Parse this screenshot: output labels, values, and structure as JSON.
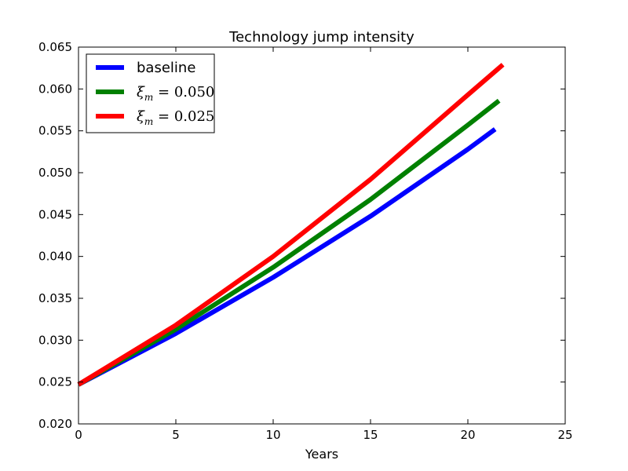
{
  "chart_data": {
    "type": "line",
    "title": "Technology jump intensity",
    "xlabel": "Years",
    "ylabel": "",
    "xlim": [
      0,
      25
    ],
    "ylim": [
      0.02,
      0.065
    ],
    "xticks": [
      0,
      5,
      10,
      15,
      20,
      25
    ],
    "yticks": [
      0.02,
      0.025,
      0.03,
      0.035,
      0.04,
      0.045,
      0.05,
      0.055,
      0.06,
      0.065
    ],
    "xtick_labels": [
      "0",
      "5",
      "10",
      "15",
      "20",
      "25"
    ],
    "ytick_labels": [
      "0.020",
      "0.025",
      "0.030",
      "0.035",
      "0.040",
      "0.045",
      "0.050",
      "0.055",
      "0.060",
      "0.065"
    ],
    "grid": false,
    "legend_position": "top-left",
    "series": [
      {
        "name": "baseline",
        "color": "#0000ff",
        "x": [
          0,
          5,
          10,
          15,
          20,
          21.4
        ],
        "y": [
          0.0247,
          0.0308,
          0.0375,
          0.0448,
          0.0528,
          0.0552
        ]
      },
      {
        "name": "ξm = 0.050",
        "name_base": "ξ",
        "name_sub": "m",
        "name_rest": " = 0.050",
        "color": "#008000",
        "x": [
          0,
          5,
          10,
          15,
          20,
          21.6
        ],
        "y": [
          0.0247,
          0.0313,
          0.0387,
          0.0468,
          0.0557,
          0.0586
        ]
      },
      {
        "name": "ξm = 0.025",
        "name_base": "ξ",
        "name_sub": "m",
        "name_rest": " = 0.025",
        "color": "#ff0000",
        "x": [
          0,
          5,
          10,
          15,
          20,
          21.8
        ],
        "y": [
          0.0247,
          0.0318,
          0.04,
          0.0492,
          0.0593,
          0.0629
        ]
      }
    ]
  }
}
